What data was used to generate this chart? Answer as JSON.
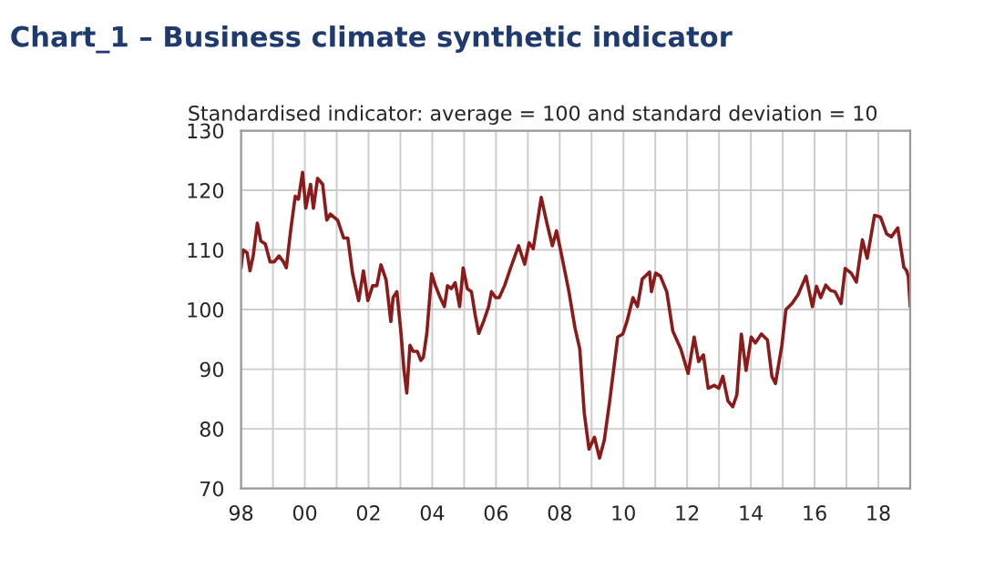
{
  "chart_data": {
    "type": "line",
    "title": "Chart_1 – Business climate synthetic indicator",
    "subtitle": "Standardised indicator: average = 100 and standard deviation = 10",
    "x": [
      1998.0,
      1998.06,
      1998.19,
      1998.28,
      1998.38,
      1998.51,
      1998.62,
      1998.76,
      1998.91,
      1999.04,
      1999.19,
      1999.33,
      1999.42,
      1999.55,
      1999.7,
      1999.8,
      1999.93,
      2000.03,
      2000.18,
      2000.27,
      2000.4,
      2000.56,
      2000.69,
      2000.8,
      2001.03,
      2001.22,
      2001.35,
      2001.5,
      2001.69,
      2001.84,
      2001.98,
      2002.13,
      2002.26,
      2002.39,
      2002.55,
      2002.7,
      2002.77,
      2002.89,
      2003.02,
      2003.11,
      2003.2,
      2003.3,
      2003.4,
      2003.53,
      2003.64,
      2003.72,
      2003.83,
      2003.98,
      2004.1,
      2004.25,
      2004.38,
      2004.48,
      2004.6,
      2004.72,
      2004.86,
      2004.97,
      2005.1,
      2005.23,
      2005.35,
      2005.46,
      2005.61,
      2005.77,
      2005.86,
      2005.99,
      2006.1,
      2006.27,
      2006.46,
      2006.71,
      2006.9,
      2007.04,
      2007.17,
      2007.42,
      2007.61,
      2007.77,
      2007.9,
      2008.06,
      2008.29,
      2008.48,
      2008.63,
      2008.77,
      2008.92,
      2009.09,
      2009.25,
      2009.4,
      2009.57,
      2009.82,
      2009.98,
      2010.11,
      2010.3,
      2010.44,
      2010.59,
      2010.82,
      2010.88,
      2011.01,
      2011.16,
      2011.36,
      2011.55,
      2011.8,
      2012.03,
      2012.22,
      2012.36,
      2012.51,
      2012.66,
      2012.85,
      2012.99,
      2013.12,
      2013.28,
      2013.43,
      2013.56,
      2013.7,
      2013.85,
      2014.01,
      2014.14,
      2014.33,
      2014.52,
      2014.66,
      2014.77,
      2014.97,
      2015.1,
      2015.29,
      2015.48,
      2015.73,
      2015.93,
      2016.06,
      2016.19,
      2016.35,
      2016.5,
      2016.64,
      2016.83,
      2016.96,
      2017.15,
      2017.31,
      2017.5,
      2017.65,
      2017.88,
      2018.07,
      2018.26,
      2018.41,
      2018.61,
      2018.8,
      2018.88,
      2018.94,
      2019.0
    ],
    "series": [
      {
        "color": "#8b1a1a",
        "values": [
          107,
          110,
          109.5,
          106.5,
          109,
          114.5,
          111.5,
          111,
          108,
          108,
          109,
          108,
          107,
          113,
          119,
          118.5,
          123,
          117,
          121,
          117,
          122,
          121,
          115,
          116,
          115,
          112,
          112,
          106,
          101.5,
          106.5,
          101.5,
          104,
          104,
          107.5,
          105,
          98,
          102,
          103,
          96,
          90,
          86,
          94,
          93,
          93,
          91.5,
          92,
          96,
          106,
          104,
          102,
          100.5,
          104,
          103.5,
          104.5,
          100.5,
          107,
          103.5,
          103,
          99,
          96,
          98,
          100.5,
          103,
          102,
          102,
          104,
          107,
          110.7,
          107.6,
          111.2,
          110.2,
          118.8,
          114.2,
          110.7,
          113.2,
          109.1,
          103,
          96.9,
          93.4,
          82.7,
          76.6,
          78.6,
          75.1,
          78.1,
          84.7,
          95.4,
          95.9,
          98,
          102,
          100.5,
          105.1,
          106.3,
          103,
          106.1,
          105.6,
          103,
          96.4,
          93.4,
          89.3,
          95.4,
          91.3,
          92.4,
          86.8,
          87.3,
          86.8,
          88.8,
          84.7,
          83.7,
          85.7,
          95.9,
          89.8,
          95.4,
          94.4,
          95.9,
          94.9,
          88.8,
          87.6,
          93.9,
          100,
          101,
          102.5,
          105.6,
          100.5,
          103.9,
          102,
          104.1,
          103.2,
          103,
          101,
          106.9,
          106.1,
          104.6,
          111.7,
          108.6,
          115.8,
          115.5,
          112.7,
          112.2,
          113.7,
          107.1,
          106.6,
          105.6,
          100.5
        ]
      }
    ],
    "xlim": [
      1998,
      2019
    ],
    "xticks": [
      {
        "value": 1998,
        "label": "98"
      },
      {
        "value": 1999,
        "label": null
      },
      {
        "value": 2000,
        "label": "00"
      },
      {
        "value": 2001,
        "label": null
      },
      {
        "value": 2002,
        "label": "02"
      },
      {
        "value": 2003,
        "label": null
      },
      {
        "value": 2004,
        "label": "04"
      },
      {
        "value": 2005,
        "label": null
      },
      {
        "value": 2006,
        "label": "06"
      },
      {
        "value": 2007,
        "label": null
      },
      {
        "value": 2008,
        "label": "08"
      },
      {
        "value": 2009,
        "label": null
      },
      {
        "value": 2010,
        "label": "10"
      },
      {
        "value": 2011,
        "label": null
      },
      {
        "value": 2012,
        "label": "12"
      },
      {
        "value": 2013,
        "label": null
      },
      {
        "value": 2014,
        "label": "14"
      },
      {
        "value": 2015,
        "label": null
      },
      {
        "value": 2016,
        "label": "16"
      },
      {
        "value": 2017,
        "label": null
      },
      {
        "value": 2018,
        "label": "18"
      },
      {
        "value": 2019,
        "label": null
      }
    ],
    "ylim": [
      70,
      130
    ],
    "yticks": [
      70,
      80,
      90,
      100,
      110,
      120,
      130
    ],
    "grid": true,
    "marker": "none",
    "line_style": "solid"
  }
}
